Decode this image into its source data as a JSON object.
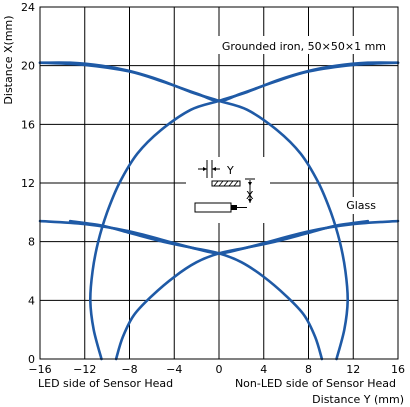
{
  "chart_data": {
    "type": "line",
    "xlabel": "Distance Y (mm)",
    "ylabel": "Distance X(mm)",
    "xlim": [
      -16,
      16
    ],
    "ylim": [
      0,
      24
    ],
    "x_ticks": [
      "−16",
      "−12",
      "−8",
      "−4",
      "0",
      "4",
      "8",
      "12",
      "16"
    ],
    "y_ticks": [
      "0",
      "4",
      "8",
      "12",
      "16",
      "20",
      "24"
    ],
    "grid": true,
    "bottom_left_label": "LED side of Sensor Head",
    "bottom_right_label": "Non-LED side of Sensor Head",
    "annotations": [
      {
        "text": "Grounded iron, 50×50×1 mm"
      },
      {
        "text": "Glass"
      }
    ],
    "diagram_labels": {
      "y": "Y",
      "x": "X"
    },
    "line_color": "#1f5aa6",
    "series": [
      {
        "group": "Grounded iron",
        "points": [
          [
            -16,
            20.2
          ],
          [
            -12,
            20.05
          ],
          [
            -8,
            19.6
          ],
          [
            -5,
            18.9
          ],
          [
            -2,
            18.1
          ],
          [
            0,
            17.6
          ],
          [
            2,
            18.1
          ],
          [
            5,
            18.9
          ],
          [
            8,
            19.6
          ],
          [
            12,
            20.05
          ],
          [
            16,
            20.2
          ]
        ]
      },
      {
        "group": "Grounded iron",
        "points": [
          [
            -10.5,
            0
          ],
          [
            -11.2,
            2
          ],
          [
            -11.5,
            4
          ],
          [
            -11.3,
            6
          ],
          [
            -10.8,
            8
          ],
          [
            -10.0,
            10
          ],
          [
            -8.9,
            12
          ],
          [
            -7.3,
            14
          ],
          [
            -5.2,
            15.6
          ],
          [
            -2.5,
            17.0
          ],
          [
            0,
            17.6
          ],
          [
            2.5,
            18.2
          ],
          [
            5.2,
            19.0
          ],
          [
            7.8,
            19.6
          ],
          [
            10.5,
            20.0
          ],
          [
            13.3,
            20.2
          ],
          [
            16,
            20.2
          ]
        ]
      },
      {
        "group": "Grounded iron",
        "points": [
          [
            -16,
            20.2
          ],
          [
            -13.3,
            20.2
          ],
          [
            -10.5,
            20.0
          ],
          [
            -7.8,
            19.6
          ],
          [
            -5.2,
            19.0
          ],
          [
            -2.5,
            18.2
          ],
          [
            0,
            17.6
          ],
          [
            2.5,
            17.0
          ],
          [
            5.2,
            15.6
          ],
          [
            7.3,
            14
          ],
          [
            8.9,
            12
          ],
          [
            10.0,
            10
          ],
          [
            10.8,
            8
          ],
          [
            11.3,
            6
          ],
          [
            11.5,
            4
          ],
          [
            11.2,
            2
          ],
          [
            10.5,
            0
          ]
        ]
      },
      {
        "group": "Glass",
        "points": [
          [
            -16,
            9.4
          ],
          [
            -12,
            9.2
          ],
          [
            -8,
            8.7
          ],
          [
            -4,
            7.9
          ],
          [
            -2,
            7.5
          ],
          [
            0,
            7.2
          ],
          [
            2,
            7.5
          ],
          [
            4,
            7.9
          ],
          [
            8,
            8.7
          ],
          [
            12,
            9.2
          ],
          [
            16,
            9.4
          ]
        ]
      },
      {
        "group": "Glass",
        "points": [
          [
            -13.3,
            9.4
          ],
          [
            -10.5,
            9.1
          ],
          [
            -8,
            8.6
          ],
          [
            -5,
            8.0
          ],
          [
            -2.5,
            7.6
          ],
          [
            0,
            7.2
          ],
          [
            2,
            6.6
          ],
          [
            4,
            5.6
          ],
          [
            6,
            4.3
          ],
          [
            7.6,
            3
          ],
          [
            8.6,
            1.5
          ],
          [
            9.2,
            0
          ]
        ]
      },
      {
        "group": "Glass",
        "points": [
          [
            -9.2,
            0
          ],
          [
            -8.6,
            1.5
          ],
          [
            -7.6,
            3
          ],
          [
            -6,
            4.3
          ],
          [
            -4,
            5.6
          ],
          [
            -2,
            6.6
          ],
          [
            0,
            7.2
          ],
          [
            2.5,
            7.6
          ],
          [
            5,
            8.0
          ],
          [
            8,
            8.6
          ],
          [
            10.5,
            9.1
          ],
          [
            13.3,
            9.4
          ]
        ]
      }
    ]
  }
}
